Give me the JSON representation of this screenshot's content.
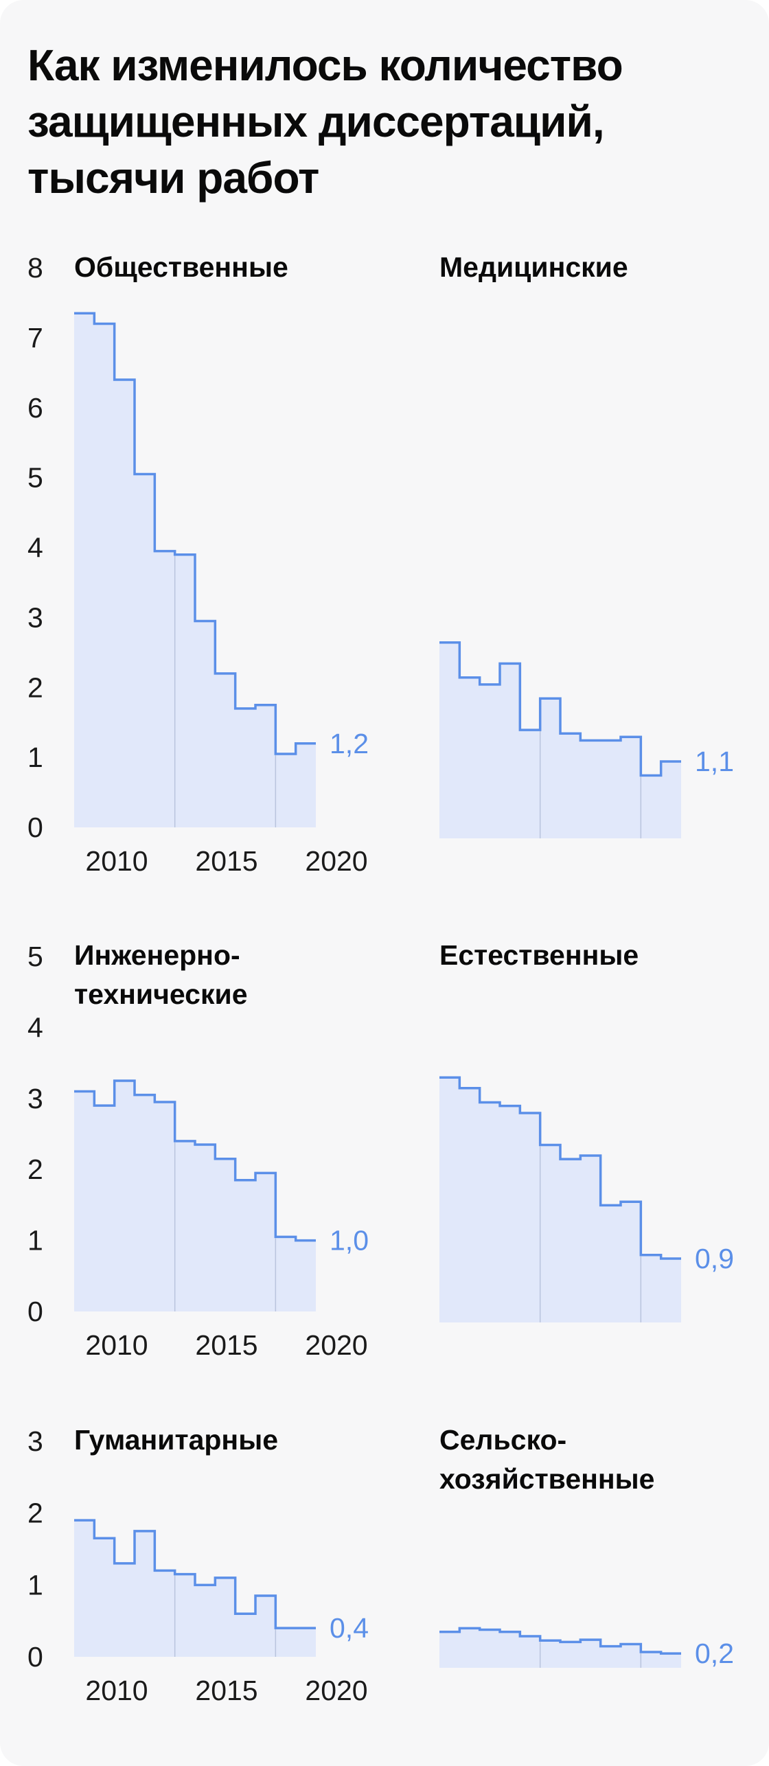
{
  "title_lines": [
    "Как изменилось количество",
    "защищенных диссертаций,",
    "тысячи работ"
  ],
  "colors": {
    "line": "#5b8fe8",
    "fill": "#e1e8fa",
    "divider": "#b9c4dd",
    "end_label": "#5b8fe8",
    "text": "#0a0a0a",
    "background": "#f7f7f8"
  },
  "chart_data": [
    {
      "type": "area",
      "step": true,
      "title": [
        "Общественные"
      ],
      "x": [
        2008,
        2009,
        2010,
        2011,
        2012,
        2013,
        2014,
        2015,
        2016,
        2017,
        2018,
        2019
      ],
      "values": [
        7.35,
        7.2,
        6.4,
        5.05,
        3.95,
        3.9,
        2.95,
        2.2,
        1.7,
        1.75,
        1.05,
        1.2
      ],
      "end_label": "1,2",
      "ylim": [
        0,
        8
      ],
      "yticks": [
        "0",
        "1",
        "2",
        "3",
        "4",
        "5",
        "6",
        "7",
        "8"
      ],
      "xticks": [
        "2010",
        "2015",
        "2020"
      ]
    },
    {
      "type": "area",
      "step": true,
      "title": [
        "Медицинские"
      ],
      "x": [
        2008,
        2009,
        2010,
        2011,
        2012,
        2013,
        2014,
        2015,
        2016,
        2017,
        2018,
        2019
      ],
      "values": [
        2.8,
        2.3,
        2.2,
        2.5,
        1.55,
        2.0,
        1.5,
        1.4,
        1.4,
        1.45,
        0.9,
        1.1
      ],
      "end_label": "1,1",
      "ylim": [
        0,
        8
      ]
    },
    {
      "type": "area",
      "step": true,
      "title": [
        "Инженерно-",
        "технические"
      ],
      "x": [
        2008,
        2009,
        2010,
        2011,
        2012,
        2013,
        2014,
        2015,
        2016,
        2017,
        2018,
        2019
      ],
      "values": [
        3.1,
        2.9,
        3.25,
        3.05,
        2.95,
        2.4,
        2.35,
        2.15,
        1.85,
        1.95,
        1.05,
        1.0
      ],
      "end_label": "1,0",
      "ylim": [
        0,
        5
      ],
      "yticks": [
        "0",
        "1",
        "2",
        "3",
        "4",
        "5"
      ],
      "xticks": [
        "2010",
        "2015",
        "2020"
      ]
    },
    {
      "type": "area",
      "step": true,
      "title": [
        "Естественные"
      ],
      "x": [
        2008,
        2009,
        2010,
        2011,
        2012,
        2013,
        2014,
        2015,
        2016,
        2017,
        2018,
        2019
      ],
      "values": [
        3.45,
        3.3,
        3.1,
        3.05,
        2.95,
        2.5,
        2.3,
        2.35,
        1.65,
        1.7,
        0.95,
        0.9
      ],
      "end_label": "0,9",
      "ylim": [
        0,
        5
      ]
    },
    {
      "type": "area",
      "step": true,
      "title": [
        "Гуманитарные"
      ],
      "x": [
        2008,
        2009,
        2010,
        2011,
        2012,
        2013,
        2014,
        2015,
        2016,
        2017,
        2018,
        2019
      ],
      "values": [
        1.9,
        1.65,
        1.3,
        1.75,
        1.2,
        1.15,
        1.0,
        1.1,
        0.6,
        0.85,
        0.4,
        0.4
      ],
      "end_label": "0,4",
      "ylim": [
        0,
        3
      ],
      "yticks": [
        "0",
        "1",
        "2",
        "3"
      ],
      "xticks": [
        "2010",
        "2015",
        "2020"
      ]
    },
    {
      "type": "area",
      "step": true,
      "title": [
        "Сельско-",
        "хозяйственные"
      ],
      "x": [
        2008,
        2009,
        2010,
        2011,
        2012,
        2013,
        2014,
        2015,
        2016,
        2017,
        2018,
        2019
      ],
      "values": [
        0.5,
        0.55,
        0.53,
        0.5,
        0.44,
        0.38,
        0.36,
        0.39,
        0.3,
        0.33,
        0.22,
        0.2
      ],
      "end_label": "0,2",
      "ylim": [
        0,
        3
      ]
    }
  ]
}
